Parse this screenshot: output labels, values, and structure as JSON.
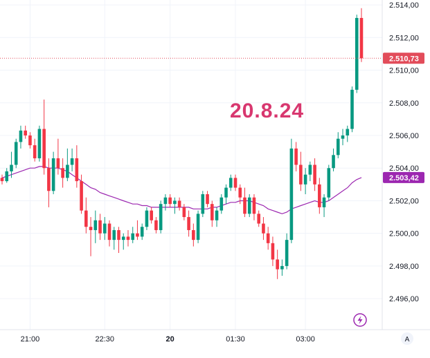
{
  "chart_data": {
    "type": "candlestick",
    "title": "",
    "annotation": "20.8.24",
    "y_ticks": [
      "2.514,00",
      "2.512,00",
      "2.510,00",
      "2.508,00",
      "2.506,00",
      "2.504,00",
      "2.502,00",
      "2.500,00",
      "2.498,00",
      "2.496,00"
    ],
    "y_tick_values": [
      2514,
      2512,
      2510,
      2508,
      2506,
      2504,
      2502,
      2500,
      2498,
      2496
    ],
    "ylim": [
      2494.1,
      2514.3
    ],
    "x_ticks": [
      "21:00",
      "22:30",
      "20",
      "01:30",
      "03:00"
    ],
    "x_tick_index": [
      6,
      22,
      36,
      50,
      65
    ],
    "bold_x_tick": "20",
    "grid": true,
    "last_price": {
      "label": "2.510,73",
      "value": 2510.73,
      "color": "#e24c5a"
    },
    "ma_price": {
      "label": "2.503,42",
      "value": 2503.42,
      "color": "#9c27b0"
    },
    "series": [
      {
        "color_up": "#089981",
        "color_down": "#f23645",
        "candles": [
          [
            2503.4,
            2503.6,
            2503.0,
            2503.2
          ],
          [
            2503.2,
            2504.0,
            2503.1,
            2503.8
          ],
          [
            2503.8,
            2505.0,
            2503.4,
            2504.2
          ],
          [
            2504.2,
            2505.8,
            2504.0,
            2505.6
          ],
          [
            2505.6,
            2506.6,
            2505.2,
            2506.3
          ],
          [
            2506.3,
            2506.6,
            2505.8,
            2506.0
          ],
          [
            2506.0,
            2506.2,
            2505.2,
            2505.4
          ],
          [
            2505.4,
            2505.8,
            2504.4,
            2504.6
          ],
          [
            2504.6,
            2506.6,
            2504.4,
            2506.4
          ],
          [
            2506.4,
            2508.2,
            2503.6,
            2504.0
          ],
          [
            2504.0,
            2504.6,
            2501.6,
            2502.6
          ],
          [
            2502.6,
            2505.0,
            2502.4,
            2504.6
          ],
          [
            2504.6,
            2505.8,
            2503.6,
            2504.0
          ],
          [
            2504.0,
            2504.6,
            2502.8,
            2503.4
          ],
          [
            2503.4,
            2505.2,
            2503.2,
            2504.2
          ],
          [
            2504.2,
            2505.2,
            2503.8,
            2504.6
          ],
          [
            2504.6,
            2505.4,
            2502.8,
            2503.2
          ],
          [
            2503.2,
            2503.6,
            2501.2,
            2501.4
          ],
          [
            2501.4,
            2502.2,
            2500.0,
            2500.4
          ],
          [
            2500.4,
            2501.0,
            2498.6,
            2500.2
          ],
          [
            2500.2,
            2501.4,
            2499.4,
            2500.8
          ],
          [
            2500.8,
            2501.2,
            2499.6,
            2500.0
          ],
          [
            2500.0,
            2501.0,
            2499.6,
            2500.6
          ],
          [
            2500.6,
            2500.8,
            2499.2,
            2499.6
          ],
          [
            2499.6,
            2500.4,
            2499.0,
            2500.2
          ],
          [
            2500.2,
            2500.4,
            2498.8,
            2499.6
          ],
          [
            2499.6,
            2500.0,
            2499.0,
            2499.8
          ],
          [
            2499.8,
            2500.2,
            2499.2,
            2499.6
          ],
          [
            2499.6,
            2500.4,
            2499.4,
            2500.0
          ],
          [
            2500.0,
            2500.8,
            2499.6,
            2499.8
          ],
          [
            2499.8,
            2500.6,
            2499.6,
            2500.4
          ],
          [
            2500.4,
            2501.6,
            2500.2,
            2501.4
          ],
          [
            2501.4,
            2501.6,
            2500.6,
            2500.8
          ],
          [
            2500.8,
            2501.0,
            2500.0,
            2500.2
          ],
          [
            2500.2,
            2502.0,
            2500.0,
            2501.8
          ],
          [
            2501.8,
            2502.4,
            2501.4,
            2502.2
          ],
          [
            2502.2,
            2502.4,
            2501.6,
            2501.8
          ],
          [
            2501.8,
            2502.2,
            2501.2,
            2502.0
          ],
          [
            2502.0,
            2502.2,
            2501.4,
            2501.6
          ],
          [
            2501.6,
            2501.8,
            2500.8,
            2501.0
          ],
          [
            2501.0,
            2501.4,
            2499.8,
            2500.2
          ],
          [
            2500.2,
            2500.6,
            2499.2,
            2499.6
          ],
          [
            2499.6,
            2501.4,
            2499.4,
            2501.2
          ],
          [
            2501.2,
            2502.6,
            2501.0,
            2502.4
          ],
          [
            2502.4,
            2502.6,
            2501.6,
            2501.8
          ],
          [
            2501.8,
            2502.0,
            2500.4,
            2500.8
          ],
          [
            2500.8,
            2501.6,
            2500.4,
            2501.4
          ],
          [
            2501.4,
            2502.4,
            2501.2,
            2502.2
          ],
          [
            2502.2,
            2503.0,
            2501.8,
            2502.8
          ],
          [
            2502.8,
            2503.6,
            2502.6,
            2503.4
          ],
          [
            2503.4,
            2503.6,
            2502.6,
            2502.8
          ],
          [
            2502.8,
            2503.0,
            2501.8,
            2502.2
          ],
          [
            2502.2,
            2502.8,
            2501.0,
            2501.2
          ],
          [
            2501.2,
            2502.4,
            2501.0,
            2502.2
          ],
          [
            2502.2,
            2502.4,
            2500.8,
            2501.2
          ],
          [
            2501.2,
            2501.4,
            2500.4,
            2500.6
          ],
          [
            2500.6,
            2501.0,
            2499.6,
            2500.0
          ],
          [
            2500.0,
            2500.4,
            2499.0,
            2499.4
          ],
          [
            2499.4,
            2499.8,
            2498.0,
            2498.4
          ],
          [
            2498.4,
            2499.0,
            2497.2,
            2497.8
          ],
          [
            2497.8,
            2498.4,
            2497.4,
            2498.0
          ],
          [
            2498.0,
            2500.0,
            2497.8,
            2499.6
          ],
          [
            2499.6,
            2505.8,
            2499.4,
            2505.2
          ],
          [
            2505.2,
            2505.6,
            2503.8,
            2504.2
          ],
          [
            2504.2,
            2505.0,
            2502.6,
            2503.0
          ],
          [
            2503.0,
            2504.0,
            2502.4,
            2503.6
          ],
          [
            2503.6,
            2504.4,
            2503.2,
            2504.2
          ],
          [
            2504.2,
            2504.6,
            2502.6,
            2503.0
          ],
          [
            2503.0,
            2503.4,
            2501.2,
            2501.6
          ],
          [
            2501.6,
            2502.4,
            2501.0,
            2502.2
          ],
          [
            2502.2,
            2504.2,
            2502.0,
            2504.0
          ],
          [
            2504.0,
            2505.2,
            2503.8,
            2504.8
          ],
          [
            2504.8,
            2506.2,
            2504.6,
            2505.8
          ],
          [
            2505.8,
            2506.4,
            2505.4,
            2506.0
          ],
          [
            2506.0,
            2506.6,
            2505.6,
            2506.4
          ],
          [
            2506.4,
            2509.0,
            2506.2,
            2508.8
          ],
          [
            2508.8,
            2513.4,
            2508.6,
            2513.2
          ],
          [
            2513.2,
            2513.8,
            2510.5,
            2510.73
          ]
        ]
      },
      {
        "name": "",
        "type": "line",
        "color": "#9c27b0",
        "values": [
          2503.4,
          2503.5,
          2503.6,
          2503.7,
          2503.8,
          2503.9,
          2504.0,
          2504.0,
          2504.1,
          2504.1,
          2504.0,
          2504.0,
          2504.0,
          2503.9,
          2503.8,
          2503.6,
          2503.4,
          2503.2,
          2503.0,
          2502.8,
          2502.7,
          2502.5,
          2502.4,
          2502.3,
          2502.2,
          2502.1,
          2502.0,
          2501.9,
          2501.8,
          2501.8,
          2501.7,
          2501.7,
          2501.6,
          2501.6,
          2501.6,
          2501.6,
          2501.6,
          2501.6,
          2501.6,
          2501.6,
          2501.6,
          2501.5,
          2501.5,
          2501.5,
          2501.5,
          2501.6,
          2501.6,
          2501.7,
          2501.8,
          2501.9,
          2501.9,
          2502.0,
          2502.0,
          2502.0,
          2501.9,
          2501.8,
          2501.7,
          2501.5,
          2501.4,
          2501.3,
          2501.2,
          2501.3,
          2501.5,
          2501.6,
          2501.7,
          2501.8,
          2501.9,
          2502.0,
          2501.9,
          2501.9,
          2502.0,
          2502.2,
          2502.4,
          2502.6,
          2502.8,
          2503.1,
          2503.3,
          2503.42
        ]
      }
    ]
  },
  "icons": {
    "flash": "flash-icon",
    "auto_scale": "A"
  }
}
